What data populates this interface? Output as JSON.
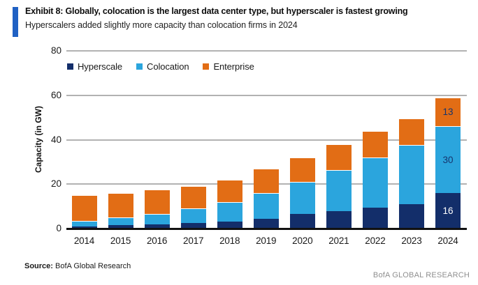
{
  "header": {
    "title": "Exhibit 8: Globally, colocation is the largest data center type, but hyperscaler is fastest growing",
    "subtitle": "Hyperscalers added slightly more capacity than colocation firms in 2024"
  },
  "chart_data": {
    "type": "bar",
    "stacked": true,
    "title": "",
    "xlabel": "",
    "ylabel": "Capacity (in GW)",
    "categories": [
      "2014",
      "2015",
      "2016",
      "2017",
      "2018",
      "2019",
      "2020",
      "2021",
      "2022",
      "2023",
      "2024"
    ],
    "series": [
      {
        "name": "Hyperscale",
        "color": "#132e6a",
        "values": [
          1,
          1.5,
          2,
          2.5,
          3,
          4.5,
          6.5,
          8,
          9.5,
          11,
          16
        ]
      },
      {
        "name": "Colocation",
        "color": "#2ba5dd",
        "values": [
          2.5,
          3.5,
          4.5,
          6.5,
          9,
          11.5,
          14.5,
          18.5,
          22.5,
          26.5,
          30
        ]
      },
      {
        "name": "Enterprise",
        "color": "#e26d15",
        "values": [
          11.5,
          11,
          11,
          10,
          10,
          11,
          11,
          11.5,
          12,
          12,
          13
        ]
      }
    ],
    "ylim": [
      0,
      80
    ],
    "yticks": [
      0,
      20,
      40,
      60,
      80
    ],
    "grid": true,
    "legend_position": "top-left",
    "data_labels": {
      "category": "2024",
      "values": {
        "Hyperscale": "16",
        "Colocation": "30",
        "Enterprise": "13"
      },
      "text_colors": {
        "Hyperscale": "#ffffff",
        "Colocation": "#16356e",
        "Enterprise": "#16356e"
      }
    }
  },
  "footer": {
    "source_label": "Source:",
    "source_text": " BofA Global Research",
    "brand": "BofA GLOBAL RESEARCH"
  }
}
